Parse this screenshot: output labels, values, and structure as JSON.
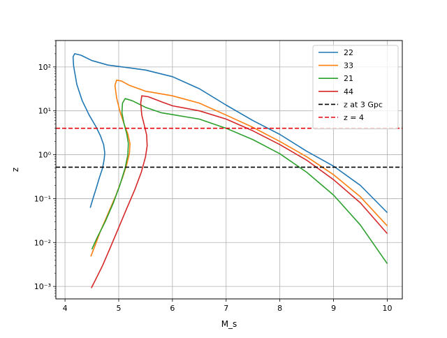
{
  "chart_data": {
    "type": "line",
    "xlabel": "M_s",
    "ylabel": "z",
    "xscale": "linear",
    "yscale": "log",
    "xlim": [
      3.83,
      10.28
    ],
    "ylim": [
      0.00052,
      400
    ],
    "x_ticks": [
      4,
      5,
      6,
      7,
      8,
      9,
      10
    ],
    "x_tick_labels": [
      "4",
      "5",
      "6",
      "7",
      "8",
      "9",
      "10"
    ],
    "y_ticks": [
      0.001,
      0.01,
      0.1,
      1,
      10,
      100
    ],
    "y_tick_labels": [
      "10⁻³",
      "10⁻²",
      "10⁻¹",
      "10⁰",
      "10¹",
      "10²"
    ],
    "grid": true,
    "legend_position": "top-right",
    "series": [
      {
        "name": "22",
        "color": "#1f77b4",
        "points": [
          [
            4.47,
            0.062
          ],
          [
            4.52,
            0.1
          ],
          [
            4.58,
            0.17
          ],
          [
            4.64,
            0.3
          ],
          [
            4.7,
            0.5
          ],
          [
            4.73,
            0.8
          ],
          [
            4.74,
            1.1
          ],
          [
            4.72,
            1.7
          ],
          [
            4.66,
            2.7
          ],
          [
            4.57,
            4.5
          ],
          [
            4.45,
            8
          ],
          [
            4.32,
            17
          ],
          [
            4.22,
            40
          ],
          [
            4.16,
            105
          ],
          [
            4.15,
            170
          ],
          [
            4.18,
            200
          ],
          [
            4.3,
            185
          ],
          [
            4.5,
            140
          ],
          [
            4.8,
            110
          ],
          [
            5.2,
            95
          ],
          [
            5.5,
            85
          ],
          [
            6.0,
            60
          ],
          [
            6.5,
            32
          ],
          [
            7.0,
            13.5
          ],
          [
            7.5,
            6
          ],
          [
            8.0,
            2.9
          ],
          [
            8.5,
            1.2
          ],
          [
            9.0,
            0.55
          ],
          [
            9.5,
            0.2
          ],
          [
            10.0,
            0.048
          ]
        ]
      },
      {
        "name": "33",
        "color": "#ff7f0e",
        "points": [
          [
            4.48,
            0.0048
          ],
          [
            4.55,
            0.008
          ],
          [
            4.65,
            0.017
          ],
          [
            4.8,
            0.045
          ],
          [
            4.95,
            0.12
          ],
          [
            5.07,
            0.3
          ],
          [
            5.15,
            0.6
          ],
          [
            5.2,
            1.1
          ],
          [
            5.21,
            1.8
          ],
          [
            5.17,
            3.0
          ],
          [
            5.1,
            5
          ],
          [
            5.02,
            10
          ],
          [
            4.96,
            20
          ],
          [
            4.93,
            38
          ],
          [
            4.96,
            50
          ],
          [
            5.05,
            48
          ],
          [
            5.2,
            38
          ],
          [
            5.5,
            28
          ],
          [
            6.0,
            22
          ],
          [
            6.5,
            15
          ],
          [
            7.0,
            8
          ],
          [
            7.5,
            4.2
          ],
          [
            8.0,
            2.0
          ],
          [
            8.5,
            0.9
          ],
          [
            9.0,
            0.35
          ],
          [
            9.5,
            0.11
          ],
          [
            10.0,
            0.024
          ]
        ]
      },
      {
        "name": "21",
        "color": "#2ca02c",
        "points": [
          [
            4.5,
            0.007
          ],
          [
            4.6,
            0.013
          ],
          [
            4.75,
            0.03
          ],
          [
            4.9,
            0.08
          ],
          [
            5.02,
            0.2
          ],
          [
            5.12,
            0.5
          ],
          [
            5.17,
            1.0
          ],
          [
            5.18,
            1.8
          ],
          [
            5.15,
            3.0
          ],
          [
            5.1,
            5
          ],
          [
            5.06,
            9
          ],
          [
            5.07,
            15
          ],
          [
            5.12,
            19
          ],
          [
            5.25,
            17
          ],
          [
            5.5,
            12
          ],
          [
            5.8,
            9
          ],
          [
            6.0,
            8.2
          ],
          [
            6.5,
            6.5
          ],
          [
            7.0,
            4.0
          ],
          [
            7.5,
            2.2
          ],
          [
            8.0,
            1.05
          ],
          [
            8.5,
            0.4
          ],
          [
            9.0,
            0.12
          ],
          [
            9.5,
            0.025
          ],
          [
            10.0,
            0.0033
          ]
        ]
      },
      {
        "name": "44",
        "color": "#d62728",
        "points": [
          [
            4.49,
            0.00092
          ],
          [
            4.6,
            0.0017
          ],
          [
            4.7,
            0.003
          ],
          [
            4.85,
            0.008
          ],
          [
            5.0,
            0.022
          ],
          [
            5.15,
            0.06
          ],
          [
            5.3,
            0.16
          ],
          [
            5.42,
            0.4
          ],
          [
            5.5,
            0.9
          ],
          [
            5.53,
            1.6
          ],
          [
            5.52,
            2.8
          ],
          [
            5.48,
            4.5
          ],
          [
            5.43,
            8
          ],
          [
            5.41,
            15
          ],
          [
            5.43,
            22
          ],
          [
            5.55,
            21
          ],
          [
            5.8,
            16
          ],
          [
            6.0,
            13
          ],
          [
            6.5,
            10
          ],
          [
            7.0,
            6.5
          ],
          [
            7.5,
            3.5
          ],
          [
            8.0,
            1.7
          ],
          [
            8.5,
            0.75
          ],
          [
            9.0,
            0.27
          ],
          [
            9.5,
            0.08
          ],
          [
            10.0,
            0.016
          ]
        ]
      }
    ],
    "hlines": [
      {
        "name": "z at 3 Gpc",
        "y": 0.52,
        "color": "#000000"
      },
      {
        "name": "z = 4",
        "y": 4.0,
        "color": "#e8000b"
      }
    ]
  }
}
